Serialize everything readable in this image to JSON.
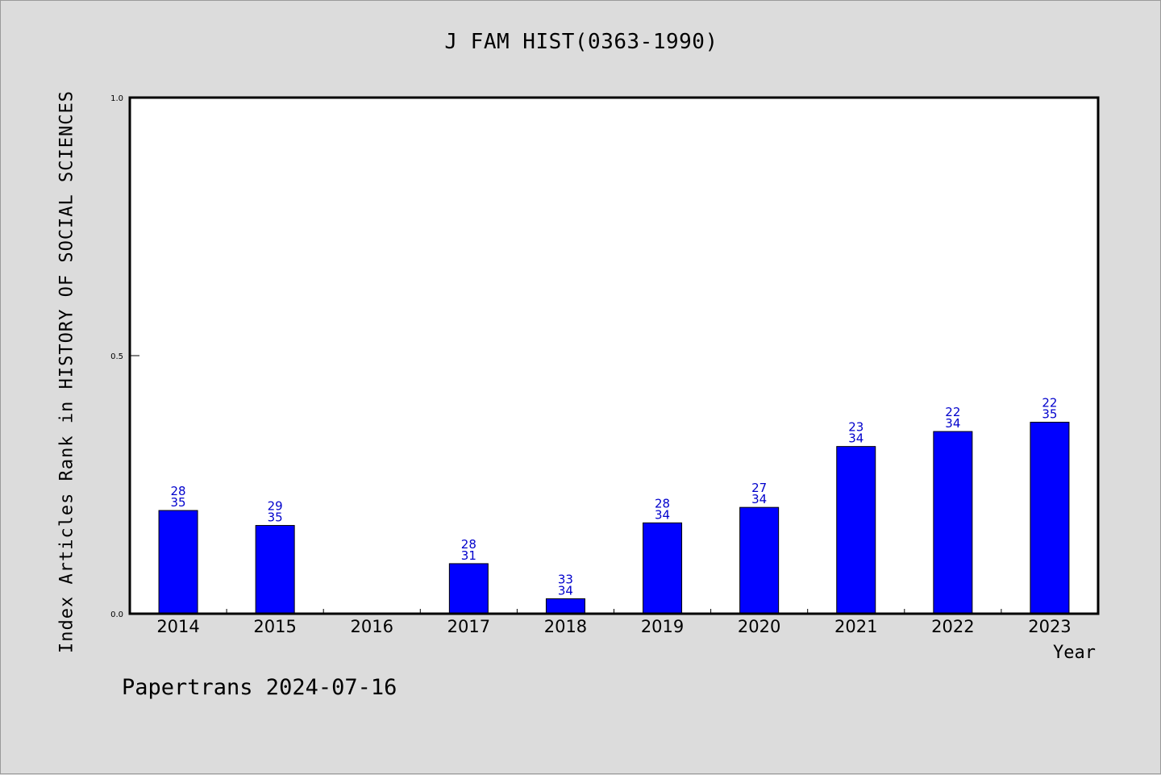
{
  "chart_data": {
    "type": "bar",
    "title": "J FAM HIST(0363-1990)",
    "xlabel": "Year",
    "ylabel": "Index Articles Rank in HISTORY OF SOCIAL SCIENCES",
    "ylim": [
      0,
      1
    ],
    "yticks": [
      {
        "value": 0,
        "label": "0.0"
      },
      {
        "value": 0.5,
        "label": "0.5"
      },
      {
        "value": 1,
        "label": "1.0"
      }
    ],
    "categories": [
      "2014",
      "2015",
      "2016",
      "2017",
      "2018",
      "2019",
      "2020",
      "2021",
      "2022",
      "2023"
    ],
    "values": [
      0.2,
      0.171,
      null,
      0.097,
      0.029,
      0.176,
      0.206,
      0.324,
      0.353,
      0.371
    ],
    "rank_labels": [
      {
        "rank": "28",
        "total": "35"
      },
      {
        "rank": "29",
        "total": "35"
      },
      null,
      {
        "rank": "28",
        "total": "31"
      },
      {
        "rank": "33",
        "total": "34"
      },
      {
        "rank": "28",
        "total": "34"
      },
      {
        "rank": "27",
        "total": "34"
      },
      {
        "rank": "23",
        "total": "34"
      },
      {
        "rank": "22",
        "total": "34"
      },
      {
        "rank": "22",
        "total": "35"
      }
    ],
    "bar_color": "#0000ff",
    "label_color": "#0000cc",
    "grid": false,
    "legend": "none"
  },
  "footer": "Papertrans 2024-07-16"
}
